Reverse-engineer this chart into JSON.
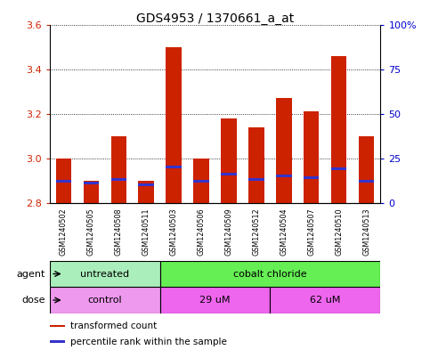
{
  "title": "GDS4953 / 1370661_a_at",
  "samples": [
    "GSM1240502",
    "GSM1240505",
    "GSM1240508",
    "GSM1240511",
    "GSM1240503",
    "GSM1240506",
    "GSM1240509",
    "GSM1240512",
    "GSM1240504",
    "GSM1240507",
    "GSM1240510",
    "GSM1240513"
  ],
  "transformed_count": [
    3.0,
    2.9,
    3.1,
    2.9,
    3.5,
    3.0,
    3.18,
    3.14,
    3.27,
    3.21,
    3.46,
    3.1
  ],
  "percentile_rank": [
    12,
    11,
    13,
    10,
    20,
    12,
    16,
    13,
    15,
    14,
    19,
    12
  ],
  "baseline": 2.8,
  "ylim_left": [
    2.8,
    3.6
  ],
  "ylim_right": [
    0,
    100
  ],
  "yticks_left": [
    2.8,
    3.0,
    3.2,
    3.4,
    3.6
  ],
  "yticks_right": [
    0,
    25,
    50,
    75,
    100
  ],
  "ytick_labels_right": [
    "0",
    "25",
    "50",
    "75",
    "100%"
  ],
  "bar_color": "#CC2200",
  "blue_color": "#3333CC",
  "agent_groups": [
    {
      "label": "untreated",
      "span": [
        0,
        4
      ],
      "color": "#AAEEBB"
    },
    {
      "label": "cobalt chloride",
      "span": [
        4,
        12
      ],
      "color": "#66EE55"
    }
  ],
  "dose_groups": [
    {
      "label": "control",
      "span": [
        0,
        4
      ],
      "color": "#EE99EE"
    },
    {
      "label": "29 uM",
      "span": [
        4,
        8
      ],
      "color": "#EE66EE"
    },
    {
      "label": "62 uM",
      "span": [
        8,
        12
      ],
      "color": "#EE66EE"
    }
  ],
  "agent_label": "agent",
  "dose_label": "dose",
  "legend_items": [
    {
      "color": "#CC2200",
      "label": "transformed count"
    },
    {
      "color": "#3333CC",
      "label": "percentile rank within the sample"
    }
  ],
  "bar_width": 0.55,
  "grid_color": "black",
  "background_color": "white",
  "plot_bg": "white",
  "left_tick_color": "#CC2200",
  "right_tick_color": "#0000CC",
  "sample_box_color": "#C8C8C8"
}
